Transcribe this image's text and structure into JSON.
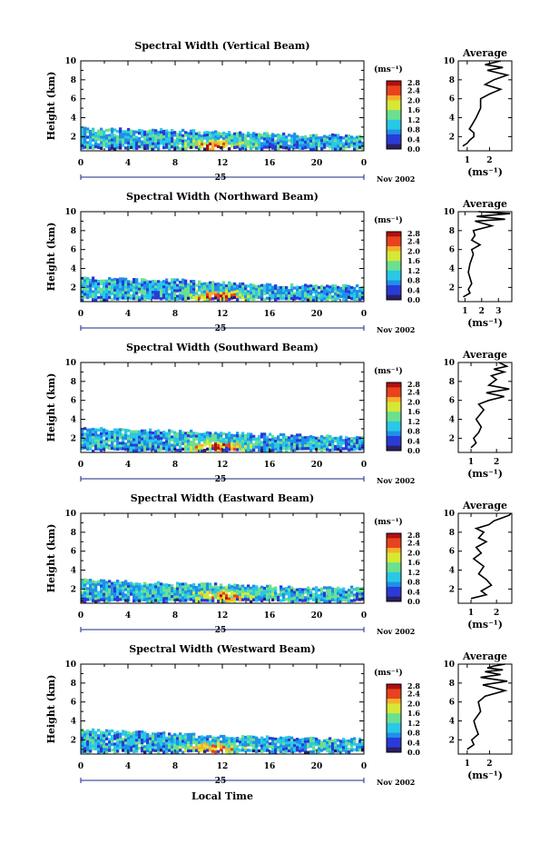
{
  "figure": {
    "xlabel": "Local Time",
    "colorbar_unit": "(ms⁻¹)",
    "colorbar_ticks": [
      "2.8",
      "2.4",
      "2.0",
      "1.6",
      "1.2",
      "0.8",
      "0.4",
      "0.0"
    ],
    "colorscale": [
      "#2b1f66",
      "#2a3bd6",
      "#1f8fe8",
      "#29c8e6",
      "#6be08f",
      "#d6e835",
      "#f5b12a",
      "#e8431e",
      "#b01010"
    ],
    "day_label": "25",
    "month_label": "Nov 2002",
    "average_title": "Average",
    "average_xlabel": "(ms⁻¹)"
  },
  "chart_data": [
    {
      "type": "heatmap",
      "title": "Spectral Width (Vertical Beam)",
      "xlabel": "Local Time",
      "ylabel": "Height (km)",
      "xlim": [
        0,
        24
      ],
      "ylim": [
        0.5,
        10
      ],
      "xticks": [
        "0",
        "4",
        "8",
        "12",
        "16",
        "20",
        "0"
      ],
      "yticks": [
        "2",
        "4",
        "6",
        "8",
        "10"
      ],
      "data_top_km": [
        2.9,
        2.8,
        2.7,
        2.5,
        2.3,
        2.2,
        2.1
      ],
      "data_top_time": [
        0,
        4,
        8,
        12,
        16,
        20,
        24
      ],
      "hotspot": {
        "time": 11.5,
        "height_km": 1.2,
        "value": 2.6
      },
      "background_value": 0.9,
      "average_profile": {
        "xlim": [
          0.6,
          3.0
        ],
        "xticks": [
          "1",
          "2"
        ],
        "ylim": [
          0.5,
          10
        ],
        "yticks": [
          "2",
          "4",
          "6",
          "8",
          "10"
        ],
        "width": [
          0.8,
          1.0,
          1.1,
          1.3,
          1.3,
          1.1,
          1.2,
          1.4,
          1.6,
          1.6,
          2.0,
          2.5,
          1.8,
          2.2,
          2.8,
          1.9,
          2.6,
          1.8,
          2.5
        ],
        "height_km": [
          1.0,
          1.3,
          1.6,
          2.0,
          2.4,
          2.8,
          3.2,
          4.0,
          5.0,
          6.0,
          6.5,
          7.0,
          7.5,
          8.0,
          8.5,
          9.0,
          9.3,
          9.6,
          10.0
        ]
      }
    },
    {
      "type": "heatmap",
      "title": "Spectral Width (Northward Beam)",
      "xlabel": "Local Time",
      "ylabel": "Height (km)",
      "xlim": [
        0,
        24
      ],
      "ylim": [
        0.5,
        10
      ],
      "xticks": [
        "0",
        "4",
        "8",
        "12",
        "16",
        "20",
        "0"
      ],
      "yticks": [
        "2",
        "4",
        "6",
        "8",
        "10"
      ],
      "data_top_km": [
        3.0,
        2.9,
        2.8,
        2.5,
        2.3,
        2.2,
        2.2
      ],
      "data_top_time": [
        0,
        4,
        8,
        12,
        16,
        20,
        24
      ],
      "hotspot": {
        "time": 11.5,
        "height_km": 1.1,
        "value": 2.5
      },
      "background_value": 0.9,
      "average_profile": {
        "xlim": [
          0.6,
          3.8
        ],
        "xticks": [
          "1",
          "2",
          "3"
        ],
        "ylim": [
          0.5,
          10
        ],
        "yticks": [
          "2",
          "4",
          "6",
          "8",
          "10"
        ],
        "width": [
          0.9,
          1.3,
          1.2,
          1.4,
          1.3,
          1.2,
          1.3,
          1.5,
          1.4,
          1.9,
          1.4,
          1.6,
          1.5,
          2.6,
          1.6,
          3.4,
          1.7,
          3.7,
          1.8
        ],
        "height_km": [
          1.0,
          1.4,
          1.8,
          2.4,
          3.0,
          3.6,
          4.5,
          5.5,
          6.0,
          6.5,
          7.0,
          7.5,
          8.0,
          8.5,
          9.0,
          9.2,
          9.5,
          9.8,
          10.0
        ]
      }
    },
    {
      "type": "heatmap",
      "title": "Spectral Width (Southward Beam)",
      "xlabel": "Local Time",
      "ylabel": "Height (km)",
      "xlim": [
        0,
        24
      ],
      "ylim": [
        0.5,
        10
      ],
      "xticks": [
        "0",
        "4",
        "8",
        "12",
        "16",
        "20",
        "0"
      ],
      "yticks": [
        "2",
        "4",
        "6",
        "8",
        "10"
      ],
      "data_top_km": [
        3.1,
        2.9,
        2.8,
        2.6,
        2.4,
        2.3,
        2.2
      ],
      "data_top_time": [
        0,
        4,
        8,
        12,
        16,
        20,
        24
      ],
      "hotspot": {
        "time": 11.5,
        "height_km": 1.2,
        "value": 2.7
      },
      "background_value": 0.9,
      "average_profile": {
        "xlim": [
          0.5,
          2.6
        ],
        "xticks": [
          "1",
          "2"
        ],
        "ylim": [
          0.5,
          10
        ],
        "yticks": [
          "2",
          "4",
          "6",
          "8",
          "10"
        ],
        "width": [
          1.0,
          1.2,
          1.1,
          1.3,
          1.4,
          1.2,
          1.5,
          1.3,
          1.7,
          2.3,
          1.6,
          2.5,
          1.7,
          2.0,
          1.8,
          2.3,
          1.9,
          2.4,
          2.1
        ],
        "height_km": [
          1.0,
          1.5,
          2.0,
          2.6,
          3.2,
          4.0,
          5.0,
          5.6,
          6.0,
          6.4,
          6.8,
          7.2,
          7.6,
          8.2,
          8.6,
          9.0,
          9.3,
          9.6,
          10.0
        ]
      }
    },
    {
      "type": "heatmap",
      "title": "Spectral Width (Eastward Beam)",
      "xlabel": "Local Time",
      "ylabel": "Height (km)",
      "xlim": [
        0,
        24
      ],
      "ylim": [
        0.5,
        10
      ],
      "xticks": [
        "0",
        "4",
        "8",
        "12",
        "16",
        "20",
        "0"
      ],
      "yticks": [
        "2",
        "4",
        "6",
        "8",
        "10"
      ],
      "data_top_km": [
        3.0,
        2.8,
        2.6,
        2.5,
        2.3,
        2.2,
        2.2
      ],
      "data_top_time": [
        0,
        4,
        8,
        12,
        16,
        20,
        24
      ],
      "hotspot": {
        "time": 12.0,
        "height_km": 1.3,
        "value": 2.4
      },
      "background_value": 1.0,
      "average_profile": {
        "xlim": [
          0.5,
          2.6
        ],
        "xticks": [
          "1",
          "2"
        ],
        "ylim": [
          0.5,
          10
        ],
        "yticks": [
          "2",
          "4",
          "6",
          "8",
          "10"
        ],
        "width": [
          1.0,
          1.6,
          1.4,
          1.8,
          1.6,
          1.3,
          1.5,
          1.1,
          1.4,
          1.2,
          1.6,
          1.3,
          1.5,
          1.2,
          1.7,
          1.9,
          2.2,
          2.5,
          2.6
        ],
        "height_km": [
          1.0,
          1.4,
          1.8,
          2.4,
          3.0,
          3.6,
          4.4,
          5.2,
          5.8,
          6.4,
          7.0,
          7.4,
          8.0,
          8.4,
          8.8,
          9.2,
          9.5,
          9.8,
          10.0
        ]
      }
    },
    {
      "type": "heatmap",
      "title": "Spectral Width (Westward Beam)",
      "xlabel": "Local Time",
      "ylabel": "Height (km)",
      "xlim": [
        0,
        24
      ],
      "ylim": [
        0.5,
        10
      ],
      "xticks": [
        "0",
        "4",
        "8",
        "12",
        "16",
        "20",
        "0"
      ],
      "yticks": [
        "2",
        "4",
        "6",
        "8",
        "10"
      ],
      "data_top_km": [
        3.1,
        2.9,
        2.7,
        2.4,
        2.3,
        2.2,
        2.1
      ],
      "data_top_time": [
        0,
        4,
        8,
        12,
        16,
        20,
        24
      ],
      "hotspot": {
        "time": 11.0,
        "height_km": 1.2,
        "value": 2.5
      },
      "background_value": 0.9,
      "average_profile": {
        "xlim": [
          0.6,
          3.0
        ],
        "xticks": [
          "1",
          "2"
        ],
        "ylim": [
          0.5,
          10
        ],
        "yticks": [
          "2",
          "4",
          "6",
          "8",
          "10"
        ],
        "width": [
          1.0,
          1.3,
          1.2,
          1.5,
          1.4,
          1.3,
          1.6,
          1.5,
          1.8,
          2.7,
          1.7,
          2.8,
          1.6,
          2.5,
          1.8,
          2.6,
          1.9,
          2.2,
          2.7
        ],
        "height_km": [
          1.0,
          1.5,
          2.0,
          2.6,
          3.2,
          4.0,
          5.0,
          6.0,
          6.6,
          7.2,
          7.8,
          8.2,
          8.6,
          8.9,
          9.2,
          9.4,
          9.6,
          9.8,
          10.0
        ]
      }
    }
  ]
}
